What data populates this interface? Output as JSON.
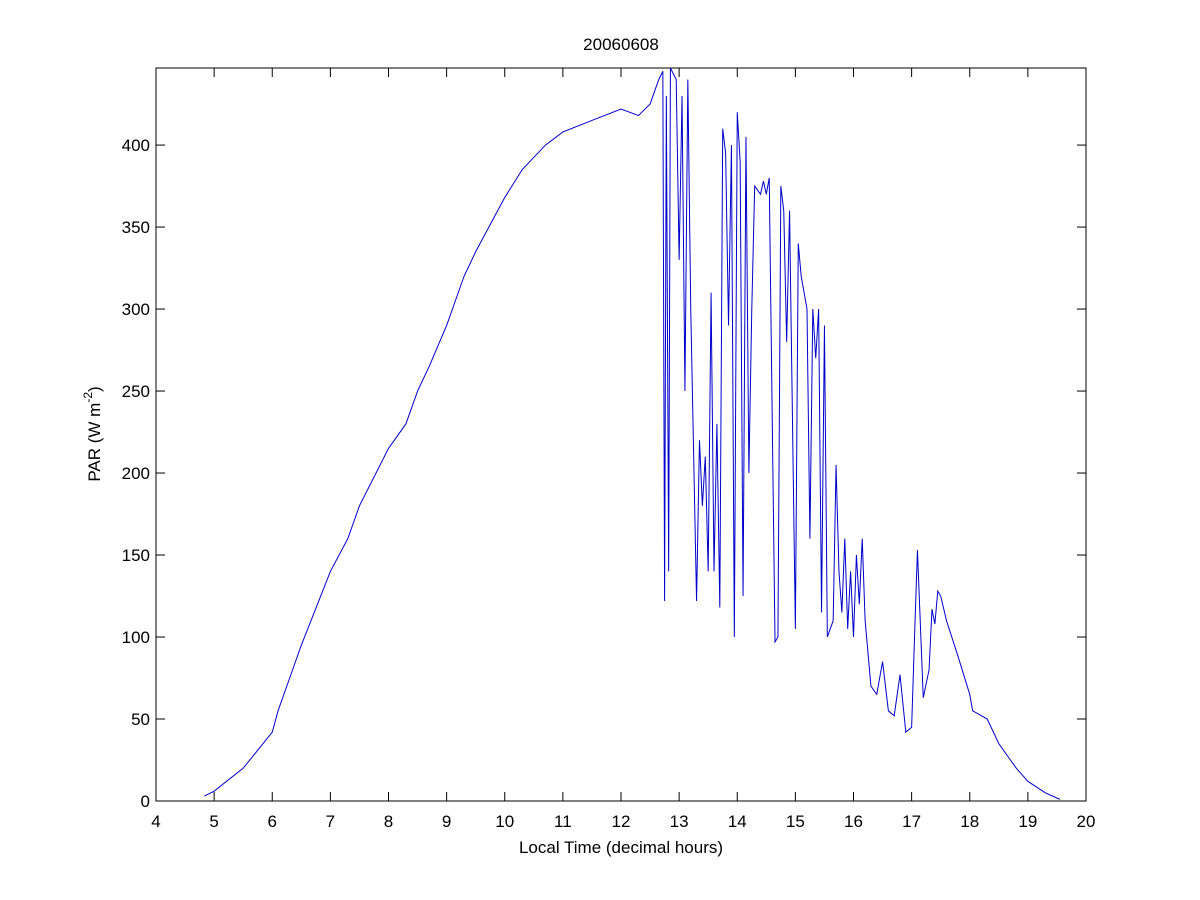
{
  "chart_data": {
    "type": "line",
    "title": "20060608",
    "xlabel": "Local Time (decimal hours)",
    "ylabel_parts": [
      "PAR (W m",
      "-2",
      ")"
    ],
    "xlim": [
      4,
      20
    ],
    "xticks": [
      4,
      5,
      6,
      7,
      8,
      9,
      10,
      11,
      12,
      13,
      14,
      15,
      16,
      17,
      18,
      19,
      20
    ],
    "ylim": [
      0,
      447
    ],
    "yticks": [
      0,
      50,
      100,
      150,
      200,
      250,
      300,
      350,
      400
    ],
    "series": [
      {
        "color": "#0000cc",
        "x": [
          4.83,
          5.0,
          5.5,
          6.0,
          6.1,
          6.3,
          6.5,
          7.0,
          7.3,
          7.5,
          8.0,
          8.3,
          8.5,
          8.7,
          9.0,
          9.3,
          9.5,
          10.0,
          10.3,
          10.7,
          11.0,
          11.5,
          12.0,
          12.3,
          12.5,
          12.65,
          12.72,
          12.75,
          12.78,
          12.82,
          12.85,
          12.95,
          13.0,
          13.05,
          13.1,
          13.15,
          13.2,
          13.3,
          13.35,
          13.4,
          13.45,
          13.5,
          13.55,
          13.6,
          13.65,
          13.7,
          13.75,
          13.8,
          13.85,
          13.9,
          13.95,
          14.0,
          14.05,
          14.1,
          14.15,
          14.2,
          14.25,
          14.3,
          14.4,
          14.45,
          14.5,
          14.55,
          14.65,
          14.7,
          14.75,
          14.8,
          14.85,
          14.9,
          15.0,
          15.05,
          15.1,
          15.2,
          15.25,
          15.3,
          15.35,
          15.4,
          15.45,
          15.5,
          15.55,
          15.65,
          15.7,
          15.75,
          15.8,
          15.85,
          15.9,
          15.95,
          16.0,
          16.05,
          16.1,
          16.15,
          16.2,
          16.3,
          16.4,
          16.5,
          16.6,
          16.7,
          16.8,
          16.9,
          17.0,
          17.05,
          17.1,
          17.2,
          17.3,
          17.35,
          17.4,
          17.45,
          17.5,
          17.6,
          17.8,
          18.0,
          18.05,
          18.2,
          18.3,
          18.5,
          18.8,
          19.0,
          19.3,
          19.55
        ],
        "values": [
          3,
          6,
          20,
          42,
          55,
          75,
          95,
          140,
          160,
          180,
          215,
          230,
          250,
          265,
          290,
          320,
          335,
          368,
          385,
          400,
          408,
          415,
          422,
          418,
          425,
          440,
          445,
          122,
          430,
          140,
          447,
          440,
          330,
          430,
          250,
          440,
          300,
          122,
          220,
          180,
          210,
          140,
          310,
          140,
          230,
          118,
          410,
          395,
          290,
          400,
          100,
          420,
          390,
          125,
          405,
          200,
          300,
          375,
          370,
          378,
          370,
          380,
          97,
          100,
          375,
          360,
          280,
          360,
          105,
          340,
          320,
          300,
          160,
          300,
          270,
          300,
          115,
          290,
          100,
          110,
          205,
          140,
          115,
          160,
          105,
          140,
          100,
          150,
          120,
          160,
          110,
          70,
          65,
          85,
          55,
          52,
          77,
          42,
          45,
          100,
          153,
          63,
          80,
          117,
          108,
          128,
          125,
          110,
          88,
          65,
          55,
          52,
          50,
          35,
          20,
          12,
          5,
          1
        ]
      }
    ]
  }
}
